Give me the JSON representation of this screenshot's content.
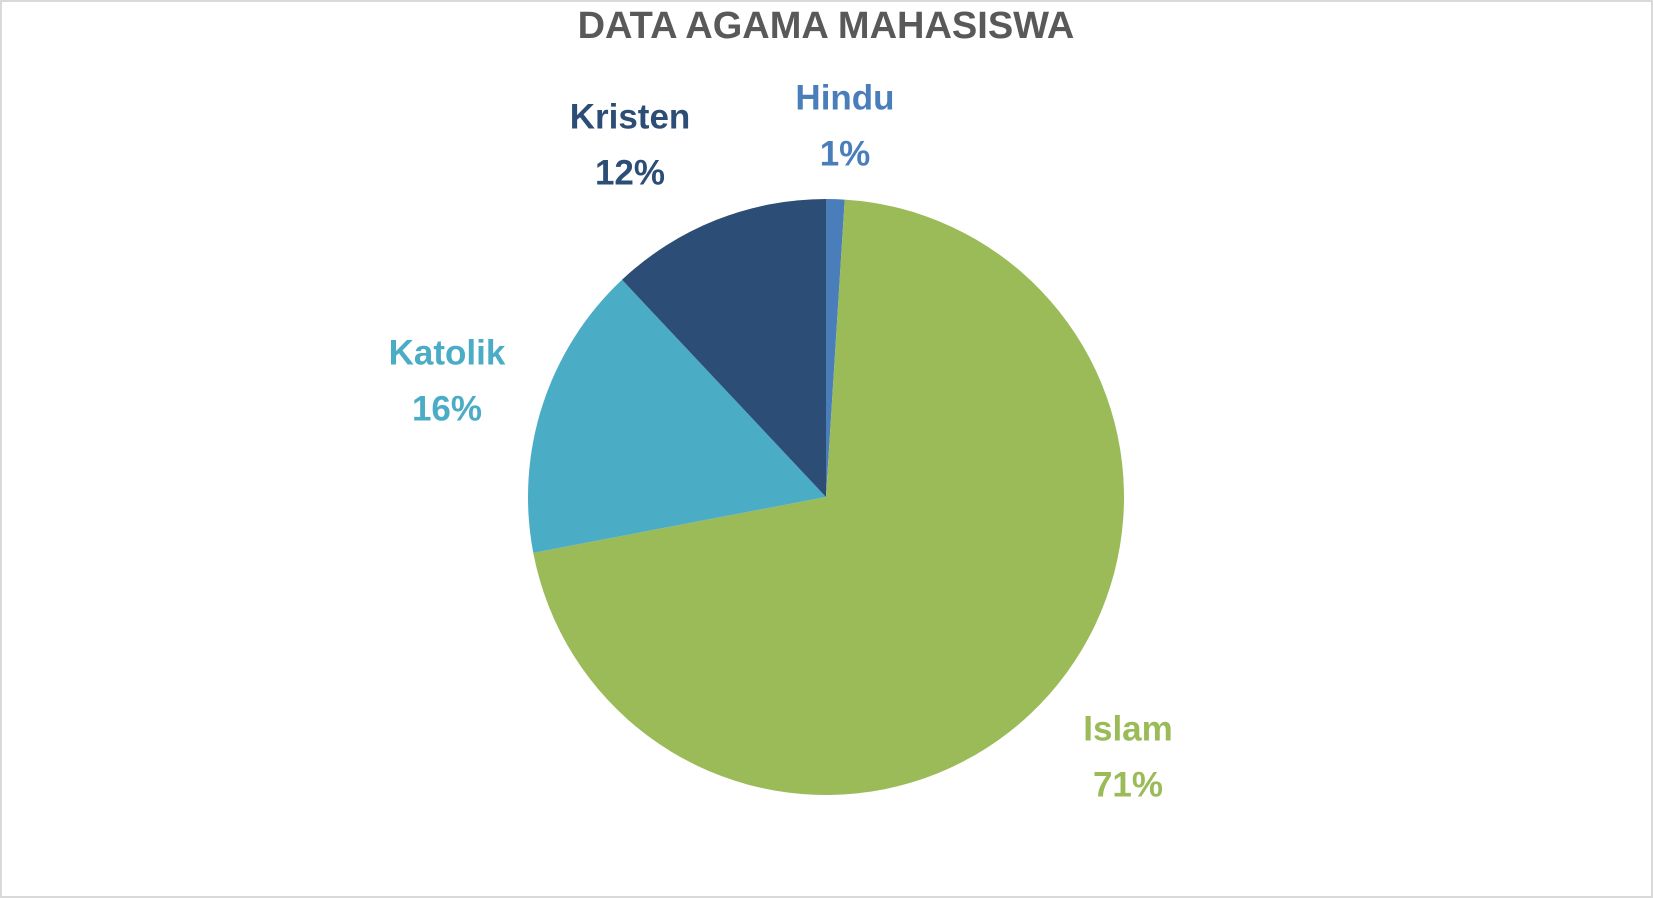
{
  "chart_data": {
    "type": "pie",
    "title": "DATA AGAMA MAHASISWA",
    "categories": [
      "Hindu",
      "Islam",
      "Katolik",
      "Kristen"
    ],
    "values": [
      1,
      71,
      16,
      12
    ],
    "value_labels": [
      "1%",
      "71%",
      "16%",
      "12%"
    ],
    "colors": [
      "#4a7ebb",
      "#9bbb59",
      "#4bacc6",
      "#2c4d75"
    ]
  }
}
